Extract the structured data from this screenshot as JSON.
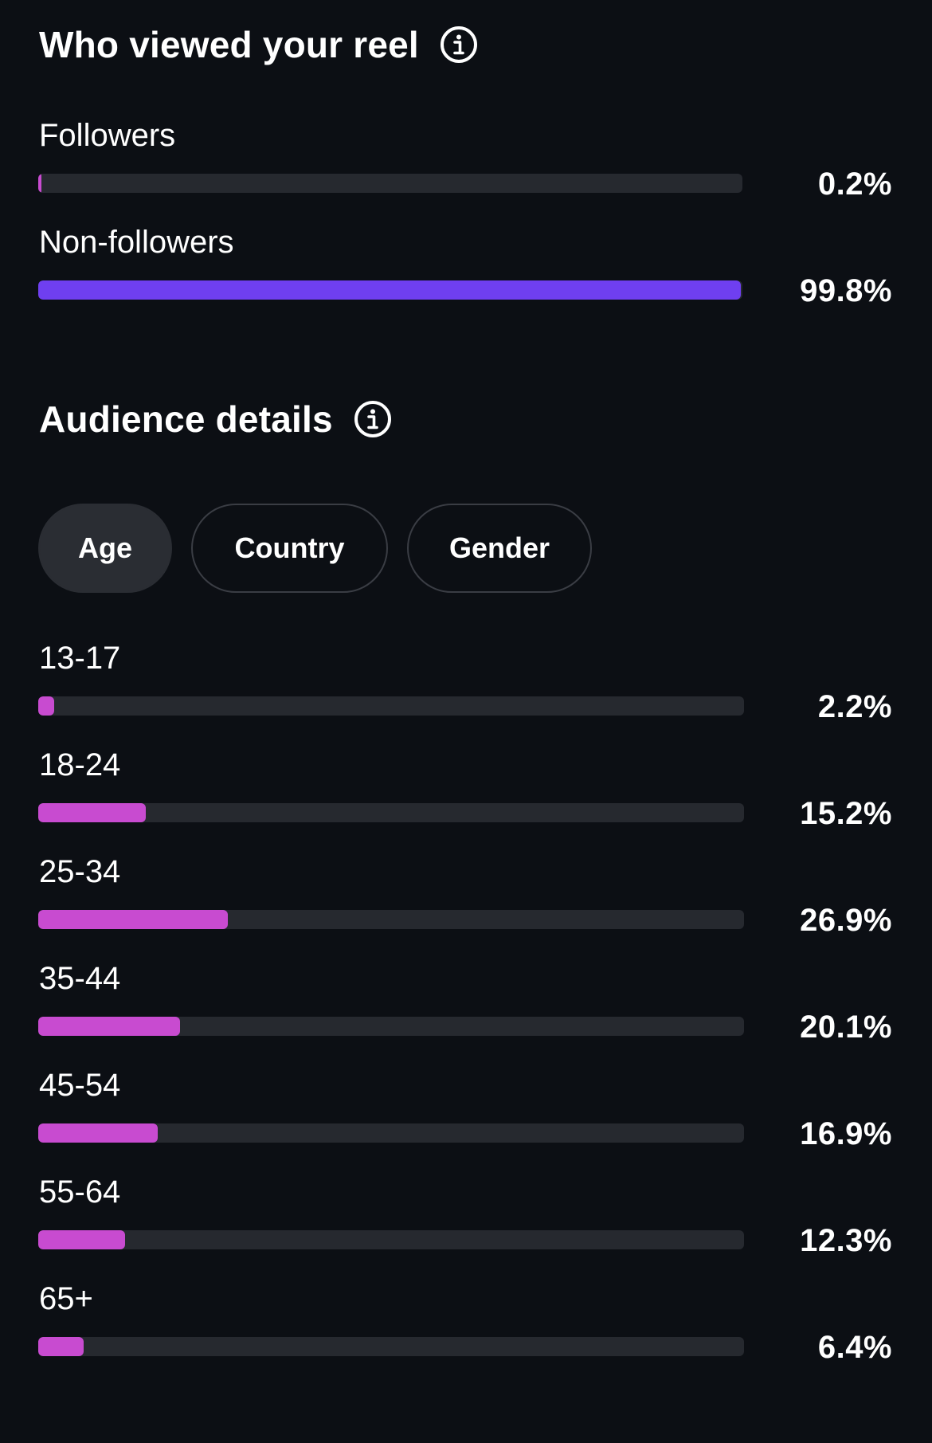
{
  "viewers": {
    "title": "Who viewed your reel",
    "info_icon": "info-circle-icon",
    "rows": [
      {
        "label": "Followers",
        "value": "0.2%",
        "fraction": 0.002
      },
      {
        "label": "Non-followers",
        "value": "99.8%",
        "fraction": 0.998
      }
    ],
    "followers_color": "#c84bd0",
    "nonfollowers_color": "#6f3ff0"
  },
  "audience": {
    "title": "Audience details",
    "info_icon": "info-circle-icon",
    "tabs": [
      {
        "label": "Age",
        "active": true
      },
      {
        "label": "Country",
        "active": false
      },
      {
        "label": "Gender",
        "active": false
      }
    ],
    "bar_color": "#c84bd0",
    "track_color": "#26292f",
    "rows": [
      {
        "label": "13-17",
        "value": "2.2%",
        "fraction": 0.022
      },
      {
        "label": "18-24",
        "value": "15.2%",
        "fraction": 0.152
      },
      {
        "label": "25-34",
        "value": "26.9%",
        "fraction": 0.269
      },
      {
        "label": "35-44",
        "value": "20.1%",
        "fraction": 0.201
      },
      {
        "label": "45-54",
        "value": "16.9%",
        "fraction": 0.169
      },
      {
        "label": "55-64",
        "value": "12.3%",
        "fraction": 0.123
      },
      {
        "label": "65+",
        "value": "6.4%",
        "fraction": 0.064
      }
    ]
  }
}
